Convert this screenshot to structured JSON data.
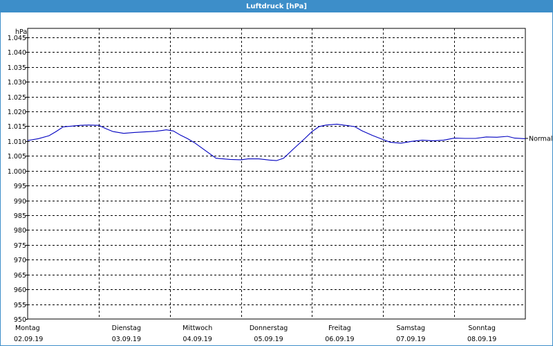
{
  "window": {
    "title": "Luftdruck [hPa]"
  },
  "colors": {
    "titlebar": "#3d8ec9",
    "series": "#0000c0",
    "grid": "#000000"
  },
  "chart_data": {
    "type": "line",
    "title": "Luftdruck [hPa]",
    "ylabel": "hPa",
    "ylim": [
      950,
      1048
    ],
    "xlim": [
      0,
      7
    ],
    "yticks": [
      "1.045",
      "1.040",
      "1.035",
      "1.030",
      "1.025",
      "1.020",
      "1.015",
      "1.010",
      "1.005",
      "1.000",
      "995",
      "990",
      "985",
      "980",
      "975",
      "970",
      "965",
      "960",
      "955",
      "950"
    ],
    "ytick_values": [
      1045,
      1040,
      1035,
      1030,
      1025,
      1020,
      1015,
      1010,
      1005,
      1000,
      995,
      990,
      985,
      980,
      975,
      970,
      965,
      960,
      955,
      950
    ],
    "xticks": [
      {
        "day": "Montag",
        "date": "02.09.19",
        "x": 0
      },
      {
        "day": "Dienstag",
        "date": "03.09.19",
        "x": 1
      },
      {
        "day": "Mittwoch",
        "date": "04.09.19",
        "x": 2
      },
      {
        "day": "Donnerstag",
        "date": "05.09.19",
        "x": 3
      },
      {
        "day": "Freitag",
        "date": "06.09.19",
        "x": 4
      },
      {
        "day": "Samstag",
        "date": "07.09.19",
        "x": 5
      },
      {
        "day": "Sonntag",
        "date": "08.09.19",
        "x": 6
      }
    ],
    "grid": true,
    "reference_line": {
      "label": "Normal",
      "value": 1010.9
    },
    "series": [
      {
        "x": [
          0,
          0.15,
          0.3,
          0.4,
          0.5,
          0.6,
          0.75,
          0.85,
          1.0,
          1.1,
          1.2,
          1.35,
          1.5,
          1.65,
          1.8,
          1.9,
          1.95,
          2.05,
          2.15,
          2.25,
          2.35,
          2.5,
          2.65,
          2.75,
          2.85,
          3.0,
          3.1,
          3.25,
          3.4,
          3.5,
          3.6,
          3.75,
          3.9,
          4.0,
          4.1,
          4.2,
          4.35,
          4.5,
          4.6,
          4.7,
          4.85,
          5.0,
          5.1,
          5.25,
          5.4,
          5.55,
          5.7,
          5.85,
          6.0,
          6.15,
          6.3,
          6.45,
          6.6,
          6.75,
          6.85,
          7.0
        ],
        "y": [
          1010.2,
          1010.8,
          1011.8,
          1013.2,
          1014.8,
          1015.0,
          1015.3,
          1015.4,
          1015.3,
          1014.2,
          1013.2,
          1012.6,
          1012.9,
          1013.1,
          1013.3,
          1013.6,
          1013.8,
          1013.4,
          1012.0,
          1010.8,
          1009.4,
          1006.8,
          1004.2,
          1004.0,
          1003.8,
          1003.7,
          1004.0,
          1004.0,
          1003.6,
          1003.4,
          1004.2,
          1007.6,
          1010.9,
          1013.2,
          1014.9,
          1015.4,
          1015.7,
          1015.2,
          1014.9,
          1013.5,
          1011.9,
          1010.5,
          1009.6,
          1009.3,
          1009.9,
          1010.3,
          1010.1,
          1010.3,
          1011.0,
          1010.9,
          1010.9,
          1011.4,
          1011.3,
          1011.6,
          1011.0,
          1010.8
        ]
      }
    ]
  }
}
